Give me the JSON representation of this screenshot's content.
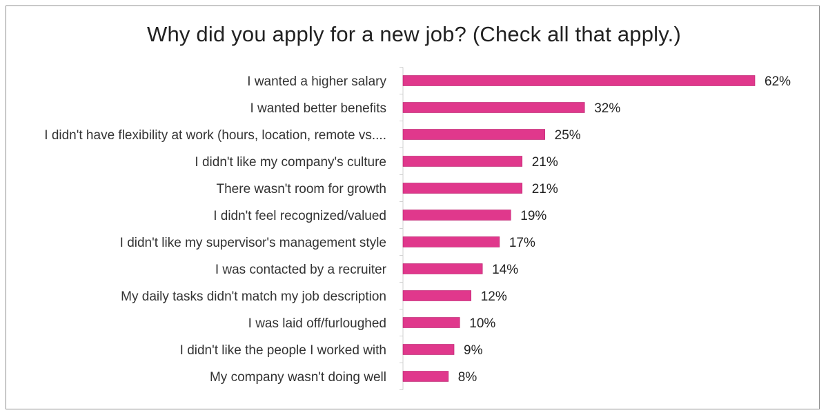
{
  "chart_data": {
    "type": "bar",
    "orientation": "horizontal",
    "title": "Why did you apply for a new job? (Check all that apply.)",
    "categories": [
      "I wanted a higher salary",
      "I wanted better benefits",
      "I didn't have flexibility at work (hours, location, remote vs....",
      "I didn't like my company's culture",
      "There wasn't room for growth",
      "I didn't feel recognized/valued",
      "I didn't like my supervisor's management style",
      "I was contacted by a recruiter",
      "My daily tasks didn't match my job description",
      "I was laid off/furloughed",
      "I didn't like the people I worked with",
      "My company wasn't doing well"
    ],
    "values": [
      62,
      32,
      25,
      21,
      21,
      19,
      17,
      14,
      12,
      10,
      9,
      8
    ],
    "data_labels": [
      "62%",
      "32%",
      "25%",
      "21%",
      "21%",
      "19%",
      "17%",
      "14%",
      "12%",
      "10%",
      "9%",
      "8%"
    ],
    "xlim": [
      0,
      62
    ],
    "bar_color": "#e0388c",
    "grid": false,
    "legend": "none"
  }
}
